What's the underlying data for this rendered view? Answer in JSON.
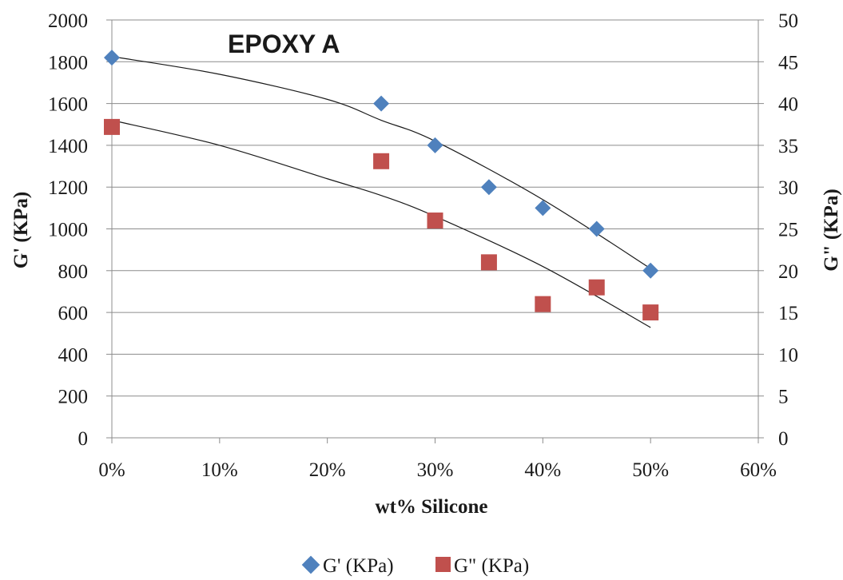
{
  "chart_data": {
    "type": "scatter",
    "title": "EPOXY A",
    "xlabel": "wt% Silicone",
    "ylabel": "G' (KPa)",
    "y2label": "G\" (KPa)",
    "xlim": [
      0,
      0.6
    ],
    "ylim": [
      0,
      2000
    ],
    "y2lim": [
      0,
      50
    ],
    "x_ticks": [
      "0%",
      "10%",
      "20%",
      "30%",
      "40%",
      "50%",
      "60%"
    ],
    "y_ticks": [
      "0",
      "200",
      "400",
      "600",
      "800",
      "1000",
      "1200",
      "1400",
      "1600",
      "1800",
      "2000"
    ],
    "y2_ticks": [
      "0",
      "5",
      "10",
      "15",
      "20",
      "25",
      "30",
      "35",
      "40",
      "45",
      "50"
    ],
    "grid": "horizontal",
    "legend_position": "bottom",
    "series": [
      {
        "name": "G' (KPa)",
        "axis": "left",
        "marker": "diamond",
        "color": "#4F81BD",
        "x": [
          0,
          0.25,
          0.3,
          0.35,
          0.4,
          0.45,
          0.5
        ],
        "y": [
          1820,
          1600,
          1400,
          1200,
          1100,
          1000,
          800
        ],
        "trendline": {
          "type": "polynomial",
          "x": [
            0,
            0.1,
            0.2,
            0.25,
            0.3,
            0.4,
            0.5
          ],
          "y": [
            1825,
            1740,
            1620,
            1520,
            1420,
            1140,
            810
          ]
        }
      },
      {
        "name": "G\" (KPa)",
        "axis": "right",
        "marker": "square",
        "color": "#C0504D",
        "x": [
          0,
          0.25,
          0.3,
          0.35,
          0.4,
          0.45,
          0.5
        ],
        "y": [
          37.2,
          33.1,
          26,
          21,
          16,
          18,
          15
        ],
        "trendline": {
          "type": "polynomial",
          "x": [
            0,
            0.1,
            0.2,
            0.25,
            0.3,
            0.4,
            0.5
          ],
          "y": [
            38,
            35,
            31,
            29,
            26.5,
            20.5,
            13.2
          ]
        }
      }
    ]
  }
}
